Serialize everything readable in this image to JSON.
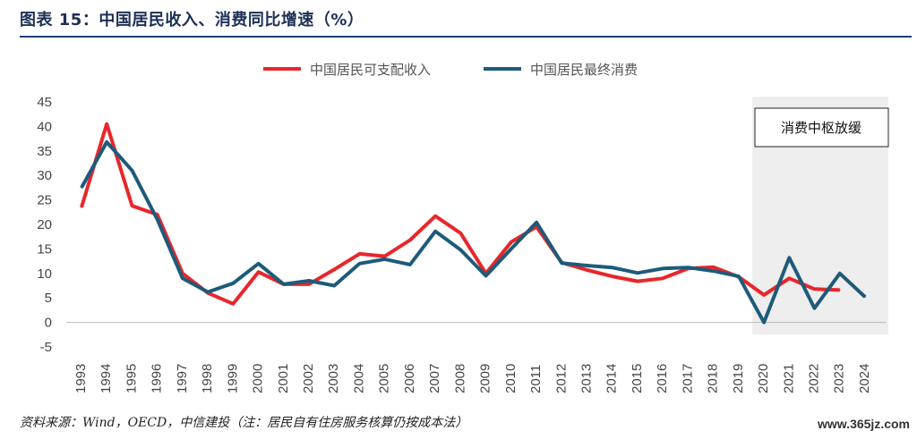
{
  "title": "图表 15：中国居民收入、消费同比增速（%）",
  "source": "资料来源：Wind，OECD，中信建投（注：居民自有住房服务核算仍按成本法）",
  "watermark": "www.365jz.com",
  "chart_data": {
    "type": "line",
    "categories": [
      "1993",
      "1994",
      "1995",
      "1996",
      "1997",
      "1998",
      "1999",
      "2000",
      "2001",
      "2002",
      "2003",
      "2004",
      "2005",
      "2006",
      "2007",
      "2008",
      "2009",
      "2010",
      "2011",
      "2012",
      "2013",
      "2014",
      "2015",
      "2016",
      "2017",
      "2018",
      "2019",
      "2020",
      "2021",
      "2022",
      "2023",
      "2024"
    ],
    "ylim": [
      -5,
      45
    ],
    "yticks": [
      -5,
      0,
      5,
      10,
      15,
      20,
      25,
      30,
      35,
      40,
      45
    ],
    "legend_position": "top-center",
    "series": [
      {
        "name": "中国居民可支配收入",
        "color": "#e8262b",
        "values": [
          23.5,
          40.5,
          23.8,
          22.0,
          10.0,
          6.0,
          3.8,
          10.3,
          7.8,
          7.8,
          10.8,
          14.0,
          13.5,
          16.8,
          21.7,
          18.2,
          10.0,
          16.4,
          19.5,
          12.2,
          10.7,
          9.4,
          8.4,
          9.0,
          11.0,
          11.3,
          9.3,
          5.6,
          9.0,
          6.8,
          6.6,
          null
        ]
      },
      {
        "name": "中国居民最终消费",
        "color": "#1d5b7a",
        "values": [
          27.5,
          36.8,
          31.0,
          21.0,
          9.0,
          6.2,
          8.0,
          12.0,
          7.8,
          8.5,
          7.5,
          12.0,
          12.9,
          11.8,
          18.6,
          14.8,
          9.5,
          15.0,
          20.4,
          12.1,
          11.6,
          11.2,
          10.1,
          11.0,
          11.2,
          10.5,
          9.4,
          0.0,
          13.2,
          2.9,
          10.0,
          5.2
        ]
      }
    ],
    "annotation": {
      "label": "消费中枢放缓",
      "shaded_range": [
        "2020",
        "2024"
      ]
    }
  }
}
